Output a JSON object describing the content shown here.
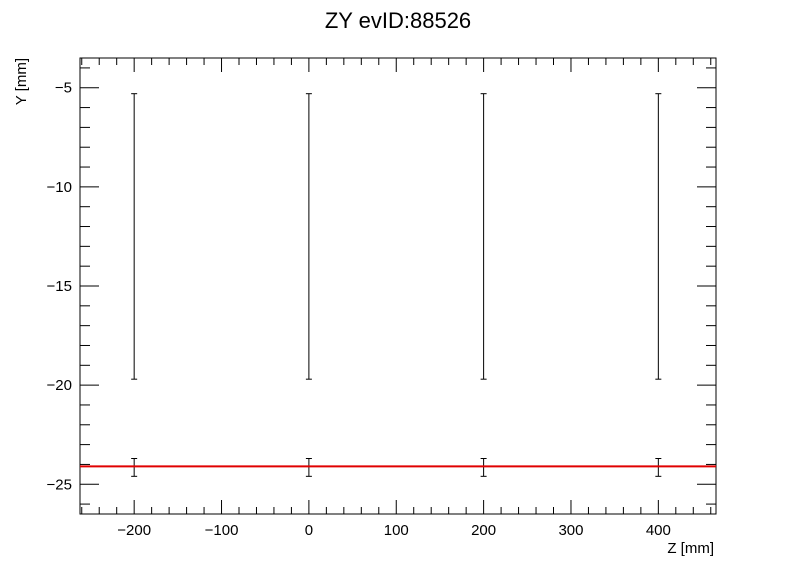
{
  "chart_data": {
    "type": "scatter",
    "title": "ZY evID:88526",
    "xlabel": "Z [mm]",
    "ylabel": "Y [mm]",
    "xlim": [
      -262,
      466
    ],
    "ylim": [
      -26.5,
      -3.5
    ],
    "x_ticks": [
      -200,
      -100,
      0,
      100,
      200,
      300,
      400
    ],
    "y_ticks": [
      -5,
      -10,
      -15,
      -20,
      -25
    ],
    "tick_labels_x": [
      "−200",
      "−100",
      "0",
      "100",
      "200",
      "300",
      "400"
    ],
    "tick_labels_y": [
      "−5",
      "−10",
      "−15",
      "−20",
      "−25"
    ],
    "grid": false,
    "series": [
      {
        "points": [
          {
            "x": -200,
            "y": -12.5,
            "yerr_low": -19.7,
            "yerr_high": -5.3
          },
          {
            "x": 0,
            "y": -12.5,
            "yerr_low": -19.7,
            "yerr_high": -5.3
          },
          {
            "x": 200,
            "y": -12.5,
            "yerr_low": -19.7,
            "yerr_high": -5.3
          },
          {
            "x": 400,
            "y": -12.5,
            "yerr_low": -19.7,
            "yerr_high": -5.3
          }
        ],
        "color": "#000000"
      },
      {
        "points": [
          {
            "x": -200,
            "y": -24.2,
            "yerr_low": -24.6,
            "yerr_high": -23.7
          },
          {
            "x": 0,
            "y": -24.2,
            "yerr_low": -24.6,
            "yerr_high": -23.7
          },
          {
            "x": 200,
            "y": -24.2,
            "yerr_low": -24.6,
            "yerr_high": -23.7
          },
          {
            "x": 400,
            "y": -24.2,
            "yerr_low": -24.6,
            "yerr_high": -23.7
          }
        ],
        "color": "#000000"
      }
    ],
    "fit_line": {
      "y": -24.1,
      "color": "#e00000"
    }
  }
}
